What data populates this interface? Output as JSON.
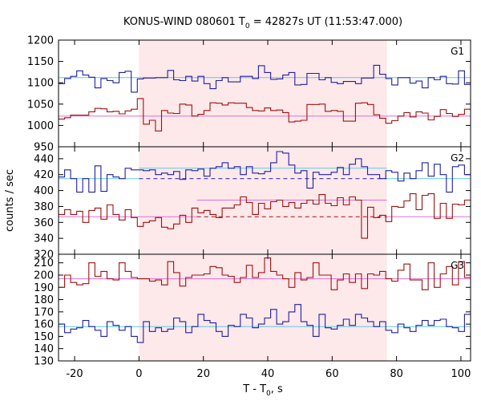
{
  "chart_data": {
    "type": "line",
    "title": {
      "main": "KONUS-WIND 080601 T",
      "sub": "0",
      "rest": " = 42827s UT (11:53:47.000)"
    },
    "xlabel": {
      "main": "T - T",
      "sub": "0",
      "rest": ", s"
    },
    "ylabel": "counts / sec",
    "xlim": [
      -25,
      103
    ],
    "x_ticks": [
      -20,
      0,
      20,
      40,
      60,
      80,
      100
    ],
    "x_tick_labels": [
      "-20",
      "0",
      "20",
      "40",
      "60",
      "80",
      "100"
    ],
    "highlight_interval": [
      0,
      77
    ],
    "colors": {
      "blue": "#2020a0",
      "red": "#a01010",
      "cyan": "#60c8e8",
      "pink": "#e070d0",
      "highlight": "#fde8ea"
    },
    "panels": [
      {
        "name": "G1",
        "ylim": [
          950,
          1200
        ],
        "y_ticks": [
          950,
          1000,
          1050,
          1100,
          1150,
          1200
        ],
        "y_tick_labels": [
          "950",
          "1000",
          "1050",
          "1100",
          "1150",
          "1200"
        ],
        "series": [
          {
            "name": "G1 blue",
            "color": "blue",
            "values": [
              1098,
              1110,
              1115,
              1128,
              1118,
              1113,
              1088,
              1110,
              1105,
              1100,
              1124,
              1127,
              1078,
              1109,
              1111,
              1111,
              1112,
              1112,
              1129,
              1107,
              1105,
              1115,
              1104,
              1115,
              1098,
              1086,
              1105,
              1112,
              1102,
              1102,
              1115,
              1115,
              1110,
              1140,
              1124,
              1108,
              1109,
              1118,
              1124,
              1095,
              1096,
              1122,
              1122,
              1107,
              1112,
              1101,
              1098,
              1103,
              1103,
              1098,
              1111,
              1111,
              1141,
              1120,
              1110,
              1095,
              1112,
              1112,
              1099,
              1104,
              1088,
              1112,
              1107,
              1115,
              1098,
              1097,
              1128,
              1096
            ]
          },
          {
            "name": "G1 red",
            "color": "red",
            "values": [
              1015,
              1018,
              1024,
              1024,
              1024,
              1032,
              1040,
              1039,
              1032,
              1033,
              1027,
              1034,
              1038,
              1063,
              1003,
              1012,
              987,
              1035,
              1029,
              1028,
              1050,
              1048,
              1022,
              1026,
              1035,
              1053,
              1052,
              1048,
              1053,
              1052,
              1052,
              1042,
              1035,
              1034,
              1041,
              1035,
              1036,
              1030,
              1008,
              1010,
              1012,
              1049,
              1049,
              1050,
              1033,
              1035,
              1033,
              1010,
              1010,
              1052,
              1053,
              1049,
              1025,
              1017,
              1005,
              1011,
              1022,
              1030,
              1020,
              1032,
              1029,
              1013,
              1021,
              1037,
              1028,
              1021,
              1026,
              1038
            ]
          }
        ],
        "fits": [
          {
            "name": "G1 blue fit",
            "color": "cyan",
            "dashed": false,
            "points": [
              [
                -25,
                1112
              ],
              [
                103,
                1112
              ]
            ]
          },
          {
            "name": "G1 red fit",
            "color": "pink",
            "dashed": false,
            "points": [
              [
                -25,
                1022
              ],
              [
                103,
                1022
              ]
            ]
          }
        ]
      },
      {
        "name": "G2",
        "ylim": [
          320,
          455
        ],
        "y_ticks": [
          320,
          340,
          360,
          380,
          400,
          420,
          440
        ],
        "y_tick_labels": [
          "320",
          "340",
          "360",
          "380",
          "400",
          "420",
          "440"
        ],
        "series": [
          {
            "name": "G2 blue",
            "color": "blue",
            "values": [
              417,
              426,
              415,
              398,
              415,
              398,
              431,
              399,
              420,
              417,
              415,
              428,
              426,
              426,
              425,
              426,
              420,
              422,
              420,
              424,
              414,
              426,
              425,
              427,
              418,
              428,
              430,
              435,
              428,
              430,
              420,
              430,
              422,
              421,
              424,
              435,
              449,
              447,
              432,
              422,
              425,
              403,
              423,
              420,
              420,
              423,
              429,
              420,
              433,
              440,
              430,
              420,
              420,
              415,
              425,
              423,
              412,
              422,
              415,
              425,
              435,
              418,
              433,
              420,
              398,
              430,
              432,
              420
            ]
          },
          {
            "name": "G2 red",
            "color": "red",
            "values": [
              370,
              376,
              370,
              374,
              360,
              375,
              378,
              364,
              382,
              370,
              363,
              376,
              366,
              355,
              360,
              362,
              366,
              354,
              352,
              358,
              369,
              360,
              378,
              372,
              375,
              370,
              366,
              378,
              378,
              382,
              392,
              385,
              370,
              384,
              377,
              386,
              388,
              380,
              385,
              378,
              384,
              388,
              383,
              395,
              384,
              381,
              391,
              382,
              392,
              388,
              340,
              379,
              366,
              369,
              361,
              380,
              379,
              387,
              396,
              376,
              394,
              396,
              365,
              384,
              365,
              383,
              382,
              388
            ]
          }
        ],
        "fits": [
          {
            "name": "G2 blue fit before",
            "color": "cyan",
            "dashed": false,
            "points": [
              [
                -25,
                415
              ],
              [
                0,
                415
              ]
            ]
          },
          {
            "name": "G2 blue fit after",
            "color": "cyan",
            "dashed": false,
            "points": [
              [
                0,
                428
              ],
              [
                77,
                428
              ]
            ]
          },
          {
            "name": "G2 blue fit tail",
            "color": "cyan",
            "dashed": false,
            "points": [
              [
                77,
                415
              ],
              [
                103,
                415
              ]
            ]
          },
          {
            "name": "G2 blue background",
            "color": "blue",
            "dashed": true,
            "points": [
              [
                0,
                415
              ],
              [
                77,
                415
              ]
            ]
          },
          {
            "name": "G2 red fit before",
            "color": "pink",
            "dashed": false,
            "points": [
              [
                -25,
                367
              ],
              [
                0,
                367
              ]
            ]
          },
          {
            "name": "G2 red fit mid",
            "color": "pink",
            "dashed": false,
            "points": [
              [
                0,
                367
              ],
              [
                18,
                367
              ]
            ]
          },
          {
            "name": "G2 red fit plateau",
            "color": "pink",
            "dashed": false,
            "points": [
              [
                18,
                388
              ],
              [
                77,
                388
              ]
            ]
          },
          {
            "name": "G2 red fit tail",
            "color": "pink",
            "dashed": false,
            "points": [
              [
                77,
                367
              ],
              [
                103,
                367
              ]
            ]
          },
          {
            "name": "G2 red background",
            "color": "red",
            "dashed": true,
            "points": [
              [
                18,
                367
              ],
              [
                77,
                367
              ]
            ]
          }
        ]
      },
      {
        "name": "G3",
        "ylim": [
          130,
          217
        ],
        "y_ticks": [
          130,
          140,
          150,
          160,
          170,
          180,
          190,
          200,
          210
        ],
        "y_tick_labels": [
          "130",
          "140",
          "150",
          "160",
          "170",
          "180",
          "190",
          "200",
          "210"
        ],
        "series": [
          {
            "name": "G3 blue",
            "color": "blue",
            "values": [
              160,
              153,
              156,
              157,
              163,
              158,
              155,
              150,
              162,
              159,
              155,
              158,
              150,
              145,
              162,
              154,
              157,
              154,
              156,
              165,
              162,
              153,
              158,
              168,
              163,
              161,
              154,
              150,
              159,
              158,
              168,
              165,
              157,
              160,
              165,
              172,
              160,
              162,
              170,
              176,
              162,
              159,
              150,
              168,
              157,
              156,
              159,
              164,
              159,
              168,
              165,
              162,
              158,
              162,
              155,
              153,
              160,
              157,
              154,
              159,
              163,
              159,
              163,
              164,
              158,
              157,
              154,
              168
            ]
          },
          {
            "name": "G3 red",
            "color": "red",
            "values": [
              190,
              200,
              194,
              192,
              193,
              210,
              199,
              203,
              197,
              196,
              210,
              203,
              198,
              197,
              197,
              195,
              196,
              192,
              211,
              202,
              191,
              198,
              200,
              200,
              201,
              207,
              206,
              200,
              199,
              194,
              198,
              208,
              198,
              202,
              214,
              203,
              200,
              197,
              190,
              202,
              196,
              198,
              210,
              200,
              200,
              188,
              196,
              201,
              194,
              201,
              189,
              201,
              200,
              203,
              197,
              195,
              204,
              209,
              196,
              196,
              188,
              210,
              190,
              201,
              207,
              192,
              211,
              198
            ]
          }
        ],
        "fits": [
          {
            "name": "G3 blue fit",
            "color": "cyan",
            "dashed": false,
            "points": [
              [
                -25,
                158
              ],
              [
                103,
                158
              ]
            ]
          },
          {
            "name": "G3 red fit",
            "color": "pink",
            "dashed": false,
            "points": [
              [
                -25,
                197
              ],
              [
                103,
                197
              ]
            ]
          }
        ]
      }
    ]
  }
}
